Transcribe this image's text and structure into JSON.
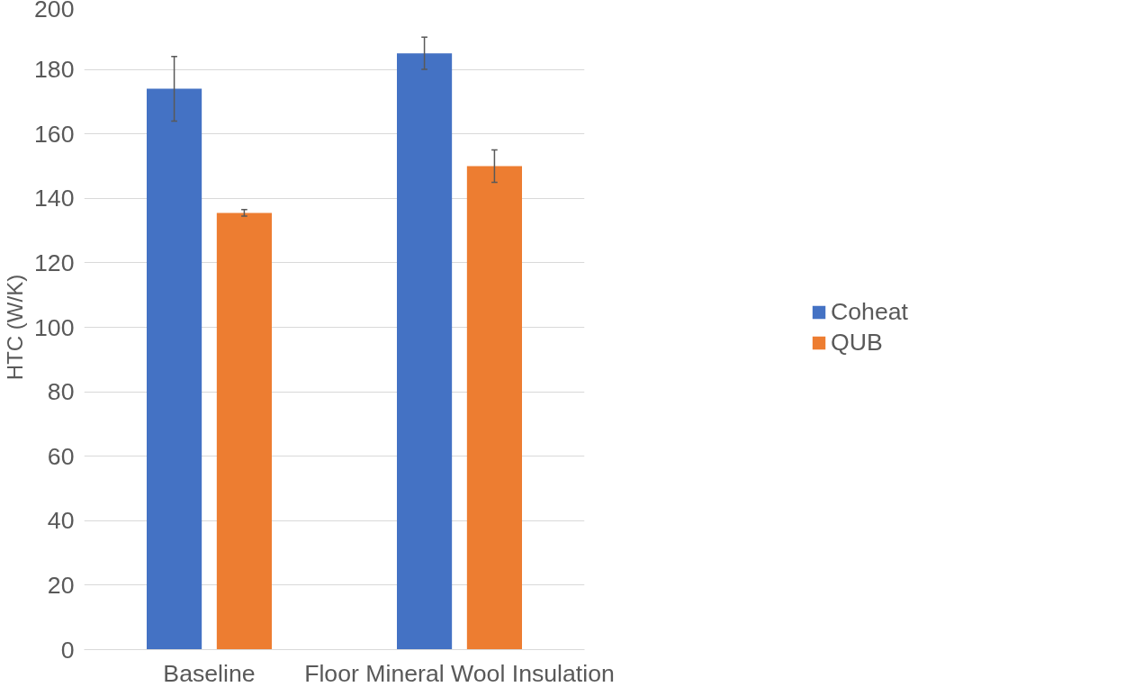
{
  "chart_data": {
    "type": "bar",
    "ylabel": "HTC (W/K)",
    "categories": [
      "Baseline",
      "Floor Mineral Wool Insulation"
    ],
    "series": [
      {
        "name": "Coheat",
        "color": "#4472c4",
        "values": [
          174,
          185
        ],
        "errors": [
          10,
          5
        ]
      },
      {
        "name": "QUB",
        "color": "#ed7d31",
        "values": [
          135.5,
          150
        ],
        "errors": [
          1,
          5
        ]
      }
    ],
    "ylim": [
      0,
      200
    ],
    "yticks": [
      0,
      20,
      40,
      60,
      80,
      100,
      120,
      140,
      160,
      180,
      200
    ],
    "grid": "y",
    "legend": "right"
  }
}
